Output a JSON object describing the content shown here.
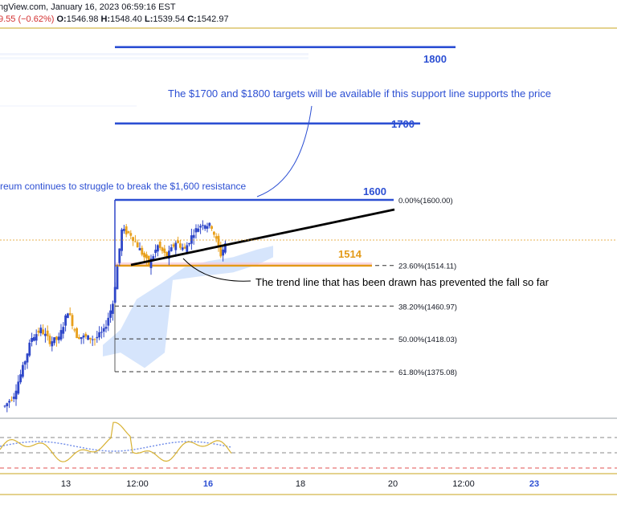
{
  "header": {
    "source_fragment": "ngView.com,",
    "timestamp": "January 16, 2023 06:59:16 EST",
    "change_fragment": "9.55 (−0.62%)",
    "open_label": "O:",
    "open": "1546.98",
    "high_label": "H:",
    "high": "1548.40",
    "low_label": "L:",
    "low": "1539.54",
    "close_label": "C:",
    "close": "1542.97"
  },
  "annotations": {
    "targets_note": "The $1700 and $1800 targets will be available if this support line supports the price",
    "resistance_note": "reum continues to struggle to break the $1,600 resistance",
    "trend_note": "The trend line that has been drawn has prevented the fall so far",
    "label_1800": "1800",
    "label_1700": "1700",
    "label_1600": "1600",
    "label_1514": "1514"
  },
  "colors": {
    "blue": "#2c4fd3",
    "orange": "#e39a17",
    "candle_up": "#2f47c9",
    "candle_down": "#e8a01c",
    "cloud": "#cfe0fb",
    "rsi_line": "#d8b233",
    "rsi_ma": "#6e8be8",
    "gold_border": "#d4b84a",
    "trend": "#000000",
    "fib": "#333333"
  },
  "chart_data": {
    "type": "line",
    "title": "",
    "xlabel": "",
    "ylabel": "",
    "x_ticks": [
      "13",
      "12:00",
      "16",
      "18",
      "20",
      "12:00",
      "23"
    ],
    "y_range": [
      1310,
      1880
    ],
    "fib_levels": [
      {
        "label": "0.00%(1600.00)",
        "value": 1600.0
      },
      {
        "label": "23.60%(1514.11)",
        "value": 1514.11
      },
      {
        "label": "38.20%(1460.97)",
        "value": 1460.97
      },
      {
        "label": "50.00%(1418.03)",
        "value": 1418.03
      },
      {
        "label": "61.80%(1375.08)",
        "value": 1375.08
      }
    ],
    "horizontal_levels": [
      1800,
      1700,
      1600,
      1514
    ],
    "trend_line": {
      "from": {
        "x": "Jan 15 12:00",
        "y": 1512
      },
      "to": {
        "x": "Jan 18 18:00",
        "y": 1580
      }
    },
    "price_series_approx": [
      {
        "t": 0,
        "close": 1330
      },
      {
        "t": 2,
        "close": 1345
      },
      {
        "t": 4,
        "close": 1380
      },
      {
        "t": 6,
        "close": 1420
      },
      {
        "t": 8,
        "close": 1430
      },
      {
        "t": 10,
        "close": 1415
      },
      {
        "t": 12,
        "close": 1418
      },
      {
        "t": 14,
        "close": 1455
      },
      {
        "t": 16,
        "close": 1422
      },
      {
        "t": 18,
        "close": 1420
      },
      {
        "t": 20,
        "close": 1418
      },
      {
        "t": 22,
        "close": 1428
      },
      {
        "t": 24,
        "close": 1465
      },
      {
        "t": 26,
        "close": 1560
      },
      {
        "t": 28,
        "close": 1555
      },
      {
        "t": 30,
        "close": 1535
      },
      {
        "t": 32,
        "close": 1515
      },
      {
        "t": 34,
        "close": 1540
      },
      {
        "t": 36,
        "close": 1525
      },
      {
        "t": 38,
        "close": 1545
      },
      {
        "t": 40,
        "close": 1535
      },
      {
        "t": 42,
        "close": 1558
      },
      {
        "t": 44,
        "close": 1570
      },
      {
        "t": 46,
        "close": 1565
      },
      {
        "t": 48,
        "close": 1528
      },
      {
        "t": 49,
        "close": 1543
      }
    ]
  }
}
